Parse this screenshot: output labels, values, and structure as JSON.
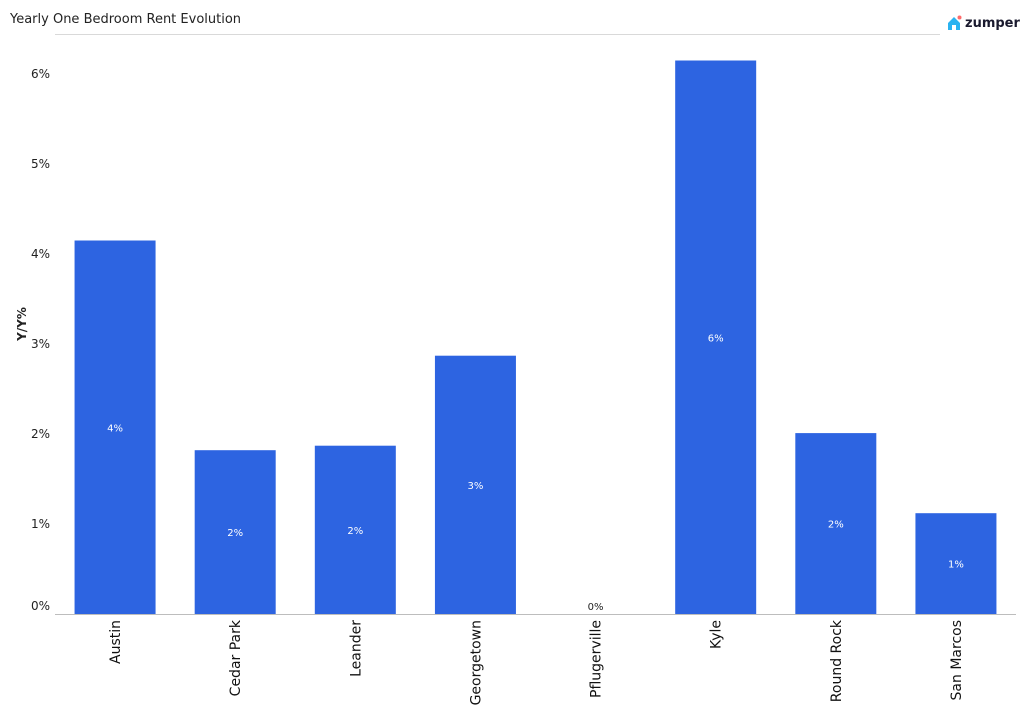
{
  "header": {
    "title": "Yearly One Bedroom Rent Evolution",
    "logo_text": "zumper"
  },
  "colors": {
    "bar": "#2d64e1",
    "label_inside": "#ffffff",
    "label_outside": "#222222",
    "logo_icon": "#2bb3f0",
    "logo_dot": "#ff6b6b"
  },
  "chart_data": {
    "type": "bar",
    "title": "Yearly One Bedroom Rent Evolution",
    "xlabel": "",
    "ylabel": "Y/Y%",
    "categories": [
      "Austin",
      "Cedar Park",
      "Leander",
      "Georgetown",
      "Pflugerville",
      "Kyle",
      "Round Rock",
      "San Marcos"
    ],
    "values": [
      4.15,
      1.82,
      1.87,
      2.87,
      0.0,
      6.15,
      2.01,
      1.12
    ],
    "data_labels": [
      "4%",
      "2%",
      "2%",
      "3%",
      "0%",
      "6%",
      "2%",
      "1%"
    ],
    "ylim": [
      0,
      6.5
    ],
    "y_ticks": [
      0,
      1,
      2,
      3,
      4,
      5,
      6
    ],
    "y_tick_labels": [
      "0%",
      "1%",
      "2%",
      "3%",
      "4%",
      "5%",
      "6%"
    ],
    "grid": false,
    "legend": "none"
  }
}
